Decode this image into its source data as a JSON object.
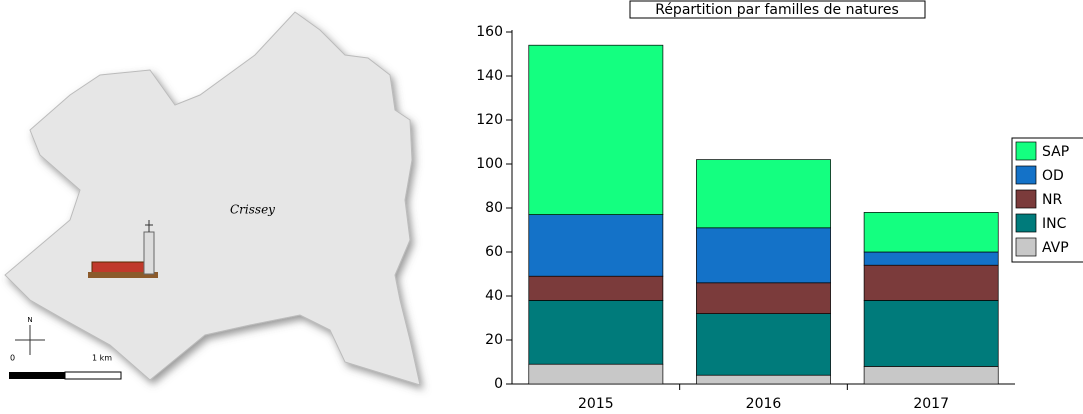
{
  "map": {
    "place": "Crissey",
    "scale_start": "0",
    "scale_end": "1 km",
    "north": "N"
  },
  "chart_data": {
    "type": "bar",
    "stacked": true,
    "title": "Répartition par familles de natures",
    "categories": [
      "2015",
      "2016",
      "2017"
    ],
    "series": [
      {
        "name": "AVP",
        "color": "#c8c8c8",
        "values": [
          9,
          4,
          8
        ]
      },
      {
        "name": "INC",
        "color": "#007b7b",
        "values": [
          29,
          28,
          30
        ]
      },
      {
        "name": "NR",
        "color": "#7b3b3b",
        "values": [
          11,
          14,
          16
        ]
      },
      {
        "name": "OD",
        "color": "#1472c8",
        "values": [
          28,
          25,
          6
        ]
      },
      {
        "name": "SAP",
        "color": "#14ff80",
        "values": [
          77,
          31,
          18
        ]
      }
    ],
    "ylim": [
      0,
      160
    ],
    "yticks": [
      0,
      20,
      40,
      60,
      80,
      100,
      120,
      140,
      160
    ],
    "legend": "right"
  }
}
